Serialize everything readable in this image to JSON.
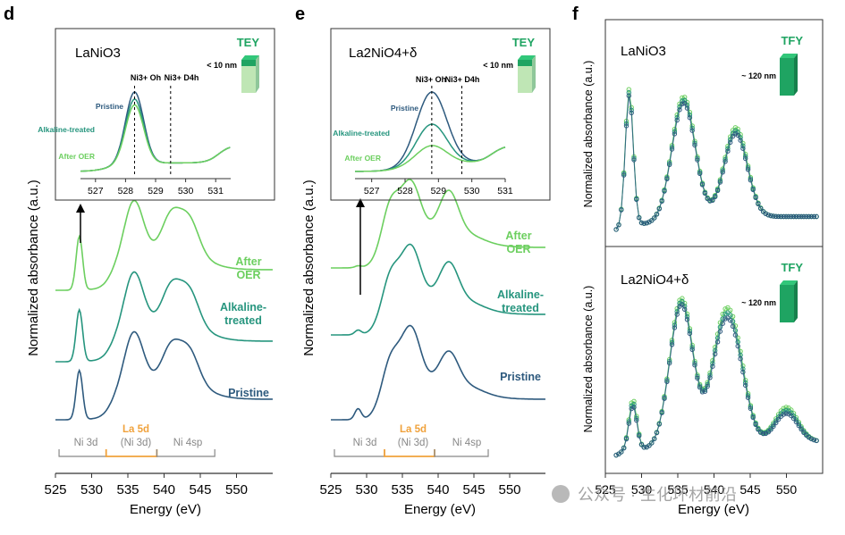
{
  "colors": {
    "pristine": "#2e5a7e",
    "alkaline": "#26957e",
    "oer": "#6ccf5f",
    "orange": "#f0a23c",
    "gray": "#888888",
    "green": "#1fa462",
    "inset_light": "#a7dc9c"
  },
  "watermark": "公众号 · 生化环材前沿",
  "chart_data": [
    {
      "id": "d",
      "type": "line",
      "panel_label": "d",
      "xlabel": "Energy (eV)",
      "ylabel": "Normalized absorbance (a.u.)",
      "xlim": [
        525,
        555
      ],
      "x_ticks": [
        "525",
        "530",
        "535",
        "540",
        "545",
        "550"
      ],
      "series": [
        {
          "name": "Pristine",
          "label_lines": [
            "Pristine"
          ],
          "peaks": [
            [
              528.3,
              0.55
            ],
            [
              535.8,
              0.6
            ],
            [
              541,
              0.4
            ],
            [
              543.5,
              0.36
            ]
          ]
        },
        {
          "name": "Alkaline-treated",
          "label_lines": [
            "Alkaline-",
            "treated"
          ],
          "peaks": [
            [
              528.3,
              0.58
            ],
            [
              535.8,
              0.62
            ],
            [
              541,
              0.42
            ],
            [
              543.5,
              0.38
            ]
          ]
        },
        {
          "name": "After OER",
          "label_lines": [
            "After",
            "OER"
          ],
          "peaks": [
            [
              528.3,
              0.6
            ],
            [
              535.8,
              0.62
            ],
            [
              541,
              0.42
            ],
            [
              543.5,
              0.38
            ]
          ]
        }
      ],
      "bands": [
        {
          "label_lines": [
            "Ni 3d"
          ],
          "range": [
            525.5,
            532
          ]
        },
        {
          "label_lines": [
            "La 5d",
            "(Ni 3d)"
          ],
          "range": [
            532,
            539
          ]
        },
        {
          "label_lines": [
            "Ni 4sp"
          ],
          "range": [
            539,
            547
          ]
        }
      ],
      "inset": {
        "title": "LaNiO3",
        "mode": "TEY",
        "depth": "< 10 nm",
        "xlim": [
          526.5,
          531.5
        ],
        "x_ticks": [
          "527",
          "528",
          "529",
          "530",
          "531"
        ],
        "marker_labels": [
          "Ni3+ Oh",
          "Ni3+ D4h"
        ],
        "markers": [
          528.3,
          529.5
        ],
        "series_labels": [
          "Pristine",
          "Alkaline-treated",
          "After OER"
        ],
        "peak_heights": [
          1.0,
          0.9,
          0.82
        ]
      }
    },
    {
      "id": "e",
      "type": "line",
      "panel_label": "e",
      "xlabel": "Energy (eV)",
      "ylabel": "Normalized absorbance (a.u.)",
      "xlim": [
        525,
        555
      ],
      "x_ticks": [
        "525",
        "530",
        "535",
        "540",
        "545",
        "550"
      ],
      "series": [
        {
          "name": "Pristine",
          "label_lines": [
            "Pristine"
          ],
          "peaks": [
            [
              528.8,
              0.12
            ],
            [
              533.3,
              0.45
            ],
            [
              536.2,
              0.62
            ],
            [
              541.5,
              0.35
            ]
          ]
        },
        {
          "name": "Alkaline-treated",
          "label_lines": [
            "Alkaline-",
            "treated"
          ],
          "peaks": [
            [
              528.8,
              0.05
            ],
            [
              533.3,
              0.45
            ],
            [
              536.2,
              0.58
            ],
            [
              541.5,
              0.4
            ]
          ]
        },
        {
          "name": "After OER",
          "label_lines": [
            "After",
            "OER"
          ],
          "peaks": [
            [
              528.8,
              0.02
            ],
            [
              533.3,
              0.5
            ],
            [
              536.2,
              0.55
            ],
            [
              541.5,
              0.45
            ]
          ]
        }
      ],
      "bands": [
        {
          "label_lines": [
            "Ni 3d"
          ],
          "range": [
            525.5,
            532.5
          ]
        },
        {
          "label_lines": [
            "La 5d",
            "(Ni 3d)"
          ],
          "range": [
            532.5,
            539.5
          ]
        },
        {
          "label_lines": [
            "Ni 4sp"
          ],
          "range": [
            539.5,
            547
          ]
        }
      ],
      "inset": {
        "title": "La2NiO4+δ",
        "mode": "TEY",
        "depth": "< 10 nm",
        "xlim": [
          526.5,
          531
        ],
        "x_ticks": [
          "527",
          "528",
          "529",
          "530",
          "531"
        ],
        "marker_labels": [
          "Ni3+ Oh",
          "Ni3+ D4h"
        ],
        "markers": [
          528.8,
          529.7
        ],
        "series_labels": [
          "Pristine",
          "Alkaline-treated",
          "After OER"
        ],
        "peak_heights": [
          1.0,
          0.55,
          0.25
        ]
      }
    },
    {
      "id": "f",
      "type": "scatter",
      "panel_label": "f",
      "xlabel": "Energy (eV)",
      "xlim": [
        525,
        555
      ],
      "x_ticks": [
        "525",
        "530",
        "535",
        "540",
        "545",
        "550"
      ],
      "subplots": [
        {
          "title": "LaNiO3",
          "mode": "TFY",
          "depth": "~ 120 nm",
          "ylabel": "Normalized absorbance (a.u.)",
          "peaks": [
            [
              528.3,
              0.85
            ],
            [
              535.8,
              0.75
            ],
            [
              543,
              0.55
            ]
          ]
        },
        {
          "title": "La2NiO4+δ",
          "mode": "TFY",
          "depth": "~ 120 nm",
          "ylabel": "Normalized absorbance (a.u.)",
          "peaks": [
            [
              528.8,
              0.3
            ],
            [
              535.5,
              0.9
            ],
            [
              541,
              0.55
            ],
            [
              543,
              0.45
            ],
            [
              550,
              0.2
            ]
          ]
        }
      ]
    }
  ]
}
